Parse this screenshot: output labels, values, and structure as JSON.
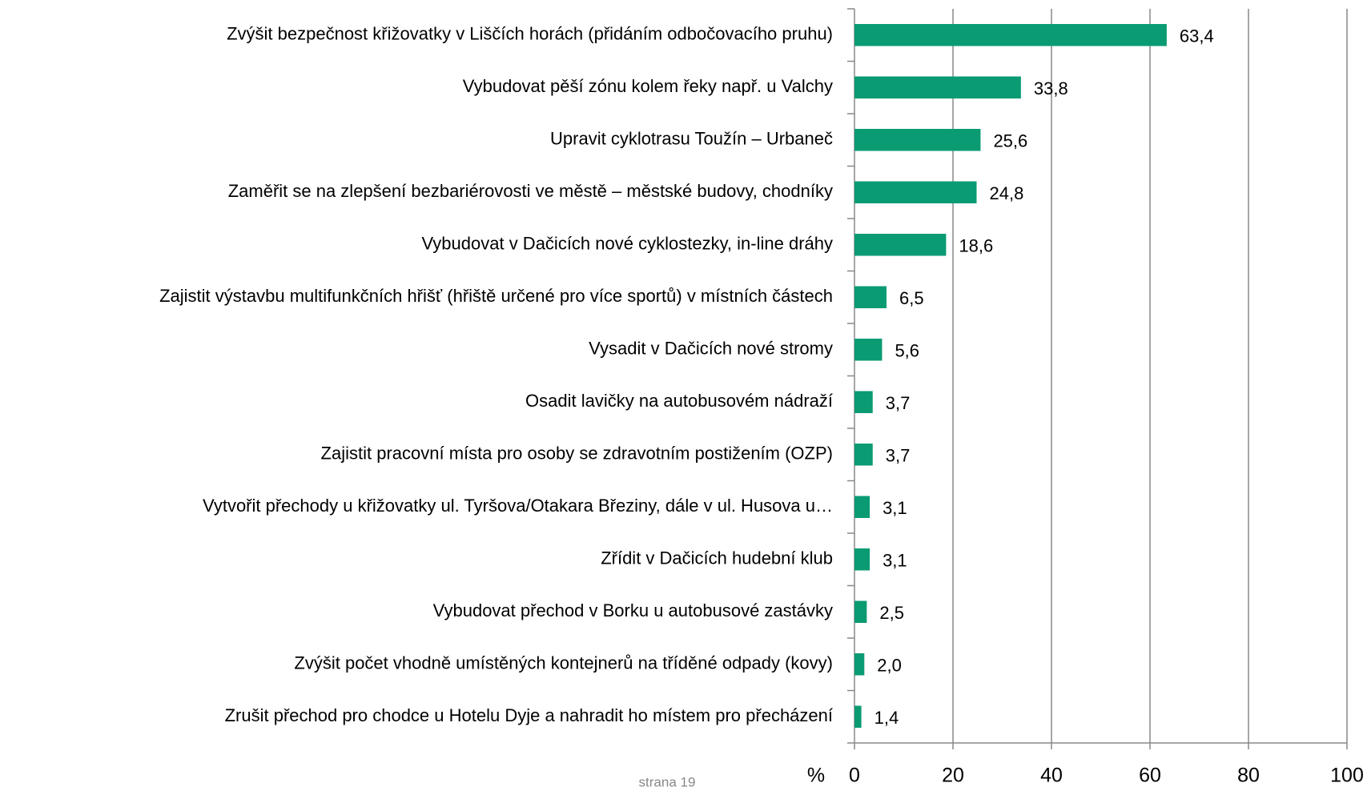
{
  "chart_data": {
    "type": "bar",
    "orientation": "horizontal",
    "categories": [
      "Zvýšit bezpečnost křižovatky v Liščích horách (přidáním odbočovacího pruhu)",
      "Vybudovat pěší zónu kolem řeky např. u Valchy",
      "Upravit cyklotrasu Toužín – Urbaneč",
      "Zaměřit se na zlepšení bezbariérovosti ve městě – městské budovy, chodníky",
      "Vybudovat v Dačicích nové cyklostezky, in-line dráhy",
      "Zajistit výstavbu multifunkčních hřišť (hřiště určené pro více sportů) v místních částech",
      "Vysadit v Dačicích nové stromy",
      "Osadit lavičky na autobusovém nádraží",
      "Zajistit pracovní místa pro osoby se zdravotním postižením (OZP)",
      "Vytvořit přechody u křižovatky ul. Tyršova/Otakara Březiny, dále v ul. Husova u…",
      "Zřídit v Dačicích hudební klub",
      "Vybudovat přechod v Borku u autobusové zastávky",
      "Zvýšit počet vhodně umístěných kontejnerů na tříděné odpady (kovy)",
      "Zrušit přechod pro chodce u Hotelu Dyje a nahradit ho místem pro přecházení"
    ],
    "values": [
      63.4,
      33.8,
      25.6,
      24.8,
      18.6,
      6.5,
      5.6,
      3.7,
      3.7,
      3.1,
      3.1,
      2.5,
      2.0,
      1.4
    ],
    "value_labels": [
      "63,4",
      "33,8",
      "25,6",
      "24,8",
      "18,6",
      "6,5",
      "5,6",
      "3,7",
      "3,7",
      "3,1",
      "3,1",
      "2,5",
      "2,0",
      "1,4"
    ],
    "color": "#0a9b73",
    "x_label": "%",
    "xlim": [
      0,
      100
    ],
    "xticks": [
      0,
      20,
      40,
      60,
      80,
      100
    ],
    "grid": true
  },
  "footer": "strana 19"
}
